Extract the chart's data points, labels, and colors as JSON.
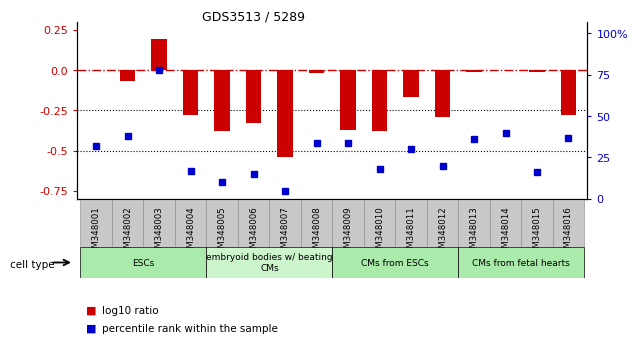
{
  "title": "GDS3513 / 5289",
  "samples": [
    "GSM348001",
    "GSM348002",
    "GSM348003",
    "GSM348004",
    "GSM348005",
    "GSM348006",
    "GSM348007",
    "GSM348008",
    "GSM348009",
    "GSM348010",
    "GSM348011",
    "GSM348012",
    "GSM348013",
    "GSM348014",
    "GSM348015",
    "GSM348016"
  ],
  "log10_ratio": [
    0.0,
    -0.07,
    0.19,
    -0.28,
    -0.38,
    -0.33,
    -0.54,
    -0.02,
    -0.37,
    -0.38,
    -0.17,
    -0.29,
    -0.01,
    -0.0,
    -0.01,
    -0.28
  ],
  "percentile_rank": [
    32,
    38,
    78,
    17,
    10,
    15,
    5,
    34,
    34,
    18,
    30,
    20,
    36,
    40,
    16,
    37
  ],
  "ylim_left": [
    -0.8,
    0.3
  ],
  "ylim_right": [
    0,
    107
  ],
  "yticks_left": [
    0.25,
    0.0,
    -0.25,
    -0.5,
    -0.75
  ],
  "yticks_right": [
    0,
    25,
    50,
    75,
    100
  ],
  "ytick_right_labels": [
    "0",
    "25",
    "50",
    "75",
    "100%"
  ],
  "hline_y": 0.0,
  "dotted_lines": [
    -0.25,
    -0.5
  ],
  "cell_type_groups": [
    {
      "label": "ESCs",
      "start": 0,
      "end": 3,
      "color": "#aaeaaa"
    },
    {
      "label": "embryoid bodies w/ beating\nCMs",
      "start": 4,
      "end": 7,
      "color": "#ccf5cc"
    },
    {
      "label": "CMs from ESCs",
      "start": 8,
      "end": 11,
      "color": "#aaeaaa"
    },
    {
      "label": "CMs from fetal hearts",
      "start": 12,
      "end": 15,
      "color": "#aaeaaa"
    }
  ],
  "bar_color": "#cc0000",
  "dot_color": "#0000cc",
  "hline_color": "#cc0000",
  "legend_red_label": "log10 ratio",
  "legend_blue_label": "percentile rank within the sample",
  "cell_type_label": "cell type",
  "xtick_bg_color": "#c8c8c8",
  "xtick_border_color": "#888888"
}
